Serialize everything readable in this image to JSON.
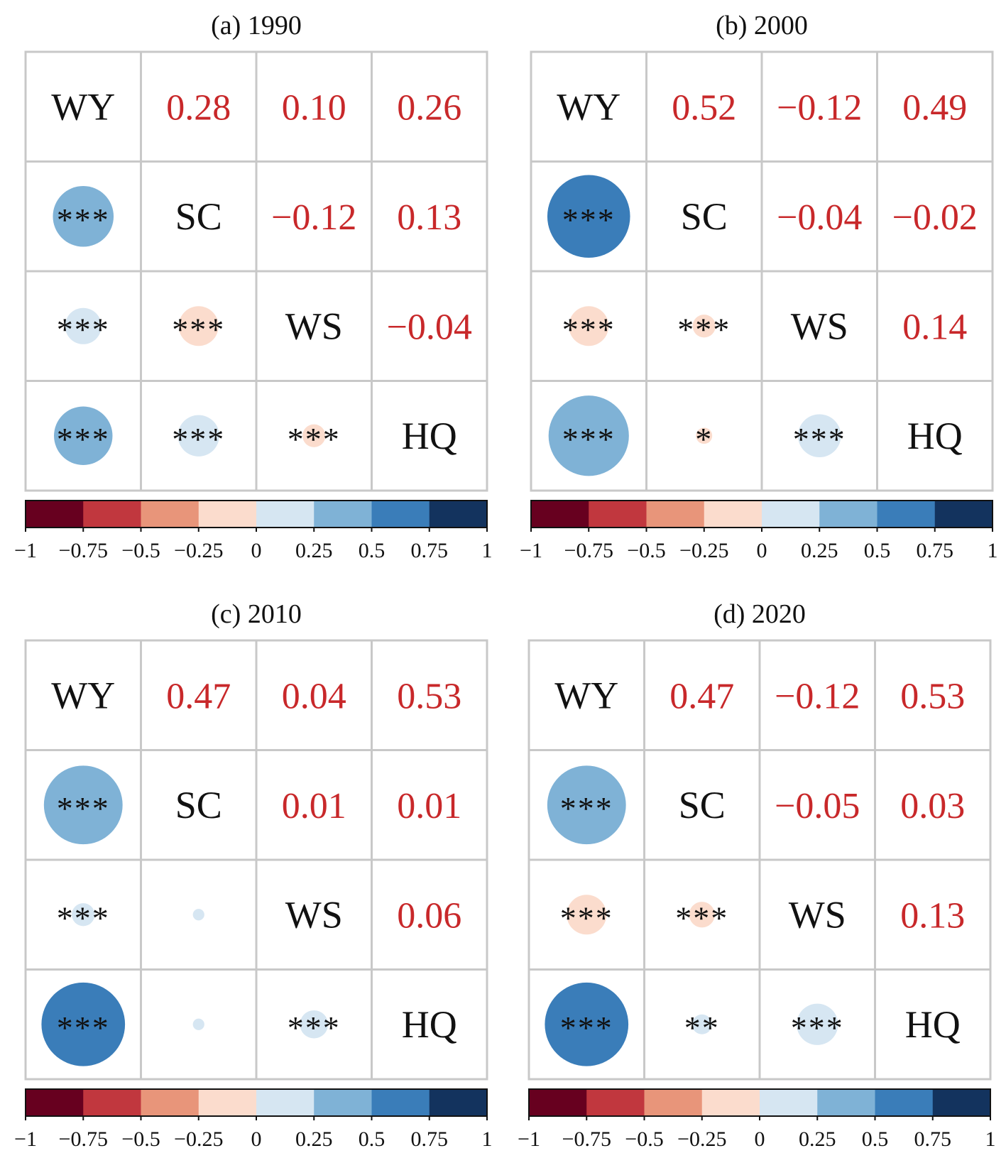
{
  "colors": {
    "text_numbers": "#c8282a",
    "grid": "#c8c8c8",
    "colorbar": [
      "#67001f",
      "#c1373e",
      "#e8957a",
      "#fbdccd",
      "#d6e6f2",
      "#7fb2d6",
      "#3a7db9",
      "#13335e"
    ]
  },
  "colorbar_ticks": [
    "−1",
    "−0.75",
    "−0.5",
    "−0.25",
    "0",
    "0.25",
    "0.5",
    "0.75",
    "1"
  ],
  "chart_data": [
    {
      "type": "heatmap",
      "title": "(a) 1990",
      "variables": [
        "WY",
        "SC",
        "WS",
        "HQ"
      ],
      "upper": [
        {
          "row": "WY",
          "col": "SC",
          "label": "0.28",
          "value": 0.28
        },
        {
          "row": "WY",
          "col": "WS",
          "label": "0.10",
          "value": 0.1
        },
        {
          "row": "WY",
          "col": "HQ",
          "label": "0.26",
          "value": 0.26
        },
        {
          "row": "SC",
          "col": "WS",
          "label": "−0.12",
          "value": -0.12
        },
        {
          "row": "SC",
          "col": "HQ",
          "label": "0.13",
          "value": 0.13
        },
        {
          "row": "WS",
          "col": "HQ",
          "label": "−0.04",
          "value": -0.04
        }
      ],
      "lower": [
        {
          "row": "SC",
          "col": "WY",
          "value": 0.28,
          "stars": "***"
        },
        {
          "row": "WS",
          "col": "WY",
          "value": 0.1,
          "stars": "***"
        },
        {
          "row": "HQ",
          "col": "WY",
          "value": 0.26,
          "stars": "***"
        },
        {
          "row": "WS",
          "col": "SC",
          "value": -0.12,
          "stars": "***"
        },
        {
          "row": "HQ",
          "col": "SC",
          "value": 0.13,
          "stars": "***"
        },
        {
          "row": "HQ",
          "col": "WS",
          "value": -0.04,
          "stars": "***"
        }
      ],
      "colorbar_range": [
        -1,
        1
      ]
    },
    {
      "type": "heatmap",
      "title": "(b) 2000",
      "variables": [
        "WY",
        "SC",
        "WS",
        "HQ"
      ],
      "upper": [
        {
          "row": "WY",
          "col": "SC",
          "label": "0.52",
          "value": 0.52
        },
        {
          "row": "WY",
          "col": "WS",
          "label": "−0.12",
          "value": -0.12
        },
        {
          "row": "WY",
          "col": "HQ",
          "label": "0.49",
          "value": 0.49
        },
        {
          "row": "SC",
          "col": "WS",
          "label": "−0.04",
          "value": -0.04
        },
        {
          "row": "SC",
          "col": "HQ",
          "label": "−0.02",
          "value": -0.02
        },
        {
          "row": "WS",
          "col": "HQ",
          "label": "0.14",
          "value": 0.14
        }
      ],
      "lower": [
        {
          "row": "SC",
          "col": "WY",
          "value": 0.52,
          "stars": "***"
        },
        {
          "row": "WS",
          "col": "WY",
          "value": -0.12,
          "stars": "***"
        },
        {
          "row": "HQ",
          "col": "WY",
          "value": 0.49,
          "stars": "***"
        },
        {
          "row": "WS",
          "col": "SC",
          "value": -0.04,
          "stars": "***"
        },
        {
          "row": "HQ",
          "col": "SC",
          "value": -0.02,
          "stars": "*"
        },
        {
          "row": "HQ",
          "col": "WS",
          "value": 0.14,
          "stars": "***"
        }
      ],
      "colorbar_range": [
        -1,
        1
      ]
    },
    {
      "type": "heatmap",
      "title": "(c) 2010",
      "variables": [
        "WY",
        "SC",
        "WS",
        "HQ"
      ],
      "upper": [
        {
          "row": "WY",
          "col": "SC",
          "label": "0.47",
          "value": 0.47
        },
        {
          "row": "WY",
          "col": "WS",
          "label": "0.04",
          "value": 0.04
        },
        {
          "row": "WY",
          "col": "HQ",
          "label": "0.53",
          "value": 0.53
        },
        {
          "row": "SC",
          "col": "WS",
          "label": "0.01",
          "value": 0.01
        },
        {
          "row": "SC",
          "col": "HQ",
          "label": "0.01",
          "value": 0.01
        },
        {
          "row": "WS",
          "col": "HQ",
          "label": "0.06",
          "value": 0.06
        }
      ],
      "lower": [
        {
          "row": "SC",
          "col": "WY",
          "value": 0.47,
          "stars": "***"
        },
        {
          "row": "WS",
          "col": "WY",
          "value": 0.04,
          "stars": "***"
        },
        {
          "row": "HQ",
          "col": "WY",
          "value": 0.53,
          "stars": "***"
        },
        {
          "row": "WS",
          "col": "SC",
          "value": 0.01,
          "stars": ""
        },
        {
          "row": "HQ",
          "col": "SC",
          "value": 0.01,
          "stars": ""
        },
        {
          "row": "HQ",
          "col": "WS",
          "value": 0.06,
          "stars": "***"
        }
      ],
      "colorbar_range": [
        -1,
        1
      ]
    },
    {
      "type": "heatmap",
      "title": "(d) 2020",
      "variables": [
        "WY",
        "SC",
        "WS",
        "HQ"
      ],
      "upper": [
        {
          "row": "WY",
          "col": "SC",
          "label": "0.47",
          "value": 0.47
        },
        {
          "row": "WY",
          "col": "WS",
          "label": "−0.12",
          "value": -0.12
        },
        {
          "row": "WY",
          "col": "HQ",
          "label": "0.53",
          "value": 0.53
        },
        {
          "row": "SC",
          "col": "WS",
          "label": "−0.05",
          "value": -0.05
        },
        {
          "row": "SC",
          "col": "HQ",
          "label": "0.03",
          "value": 0.03
        },
        {
          "row": "WS",
          "col": "HQ",
          "label": "0.13",
          "value": 0.13
        }
      ],
      "lower": [
        {
          "row": "SC",
          "col": "WY",
          "value": 0.47,
          "stars": "***"
        },
        {
          "row": "WS",
          "col": "WY",
          "value": -0.12,
          "stars": "***"
        },
        {
          "row": "HQ",
          "col": "WY",
          "value": 0.53,
          "stars": "***"
        },
        {
          "row": "WS",
          "col": "SC",
          "value": -0.05,
          "stars": "***"
        },
        {
          "row": "HQ",
          "col": "SC",
          "value": 0.03,
          "stars": "**"
        },
        {
          "row": "HQ",
          "col": "WS",
          "value": 0.13,
          "stars": "***"
        }
      ],
      "colorbar_range": [
        -1,
        1
      ]
    }
  ]
}
